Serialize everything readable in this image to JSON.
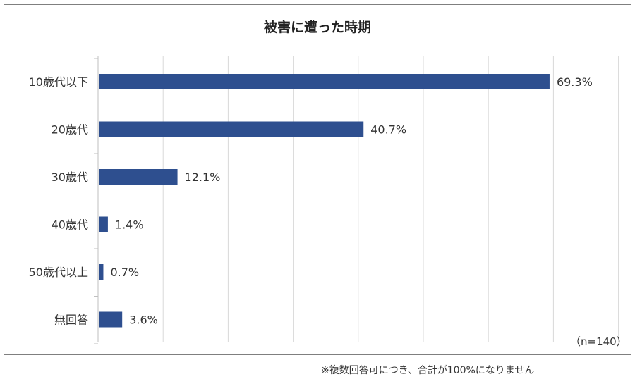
{
  "chart_data": {
    "type": "bar",
    "orientation": "horizontal",
    "title": "被害に遭った時期",
    "categories": [
      "10歳代以下",
      "20歳代",
      "30歳代",
      "40歳代",
      "50歳代以上",
      "無回答"
    ],
    "values": [
      69.3,
      40.7,
      12.1,
      1.4,
      0.7,
      3.6
    ],
    "value_labels": [
      "69.3%",
      "40.7%",
      "12.1%",
      "1.4%",
      "0.7%",
      "3.6%"
    ],
    "xlim": [
      0,
      80
    ],
    "grid_step": 10,
    "grid": true,
    "xlabel": "",
    "ylabel": "",
    "bar_color": "#2e4f8f",
    "sample_note": "（n=140）",
    "footnote": "※複数回答可につき、合計が100%になりません"
  }
}
